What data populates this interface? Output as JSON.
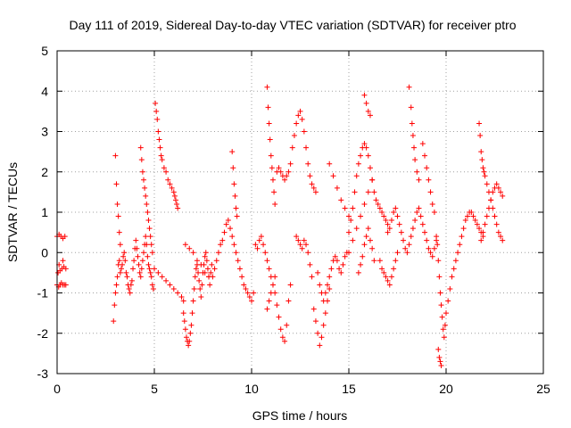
{
  "chart_data": {
    "type": "scatter",
    "title": "Day 111 of 2019, Sidereal Day-to-day VTEC variation (SDTVAR) for receiver ptro",
    "xlabel": "GPS time / hours",
    "ylabel": "SDTVAR / TECUs",
    "xlim": [
      0,
      25
    ],
    "ylim": [
      -3,
      5
    ],
    "xticks": [
      "0",
      "5",
      "10",
      "15",
      "20",
      "25"
    ],
    "yticks": [
      "-3",
      "-2",
      "-1",
      "0",
      "1",
      "2",
      "3",
      "4",
      "5"
    ],
    "grid": true,
    "marker": "+",
    "color": "#ff0000",
    "series": [
      {
        "name": "SDTVAR",
        "x": [
          0.0,
          0.08,
          0.15,
          0.22,
          0.3,
          0.38,
          0.45,
          0.0,
          0.1,
          0.2,
          0.3,
          0.4,
          0.05,
          0.15,
          0.25,
          0.35,
          0.45,
          0.1,
          0.3,
          2.9,
          2.95,
          3.0,
          3.05,
          3.1,
          3.15,
          3.2,
          3.25,
          3.3,
          3.35,
          3.4,
          3.45,
          3.5,
          3.55,
          3.6,
          3.65,
          3.7,
          3.75,
          3.8,
          3.85,
          3.9,
          3.95,
          4.0,
          4.05,
          4.1,
          4.15,
          4.2,
          4.25,
          4.3,
          4.35,
          4.4,
          4.45,
          4.5,
          4.55,
          4.6,
          4.65,
          4.7,
          4.75,
          4.8,
          4.85,
          4.9,
          4.95,
          3.0,
          3.05,
          3.1,
          3.15,
          3.2,
          3.25,
          4.3,
          4.35,
          4.4,
          4.45,
          4.5,
          4.55,
          4.6,
          4.65,
          4.7,
          4.75,
          4.8,
          4.85,
          4.9,
          5.05,
          5.1,
          5.15,
          5.2,
          5.25,
          5.3,
          5.35,
          5.4,
          5.5,
          5.6,
          5.7,
          5.8,
          5.9,
          6.0,
          6.05,
          6.1,
          6.15,
          6.2,
          5.0,
          5.2,
          5.4,
          5.6,
          5.8,
          6.0,
          6.2,
          6.4,
          6.5,
          6.5,
          6.55,
          6.6,
          6.65,
          6.7,
          6.75,
          6.8,
          6.85,
          6.9,
          6.95,
          7.0,
          7.05,
          7.1,
          7.15,
          7.2,
          7.25,
          7.3,
          7.35,
          7.4,
          7.45,
          7.5,
          7.55,
          7.6,
          7.65,
          7.7,
          7.75,
          7.8,
          7.85,
          7.9,
          7.95,
          6.6,
          6.8,
          7.0,
          7.2,
          7.4,
          7.6,
          7.8,
          8.0,
          8.1,
          8.2,
          8.3,
          8.4,
          8.5,
          8.6,
          8.7,
          8.8,
          8.9,
          9.0,
          9.1,
          9.2,
          9.3,
          9.4,
          9.5,
          9.6,
          9.7,
          9.8,
          9.9,
          10.0,
          10.1,
          9.0,
          9.05,
          9.1,
          9.15,
          9.2,
          9.25,
          10.2,
          10.3,
          10.4,
          10.5,
          10.6,
          10.7,
          10.8,
          10.9,
          11.0,
          11.1,
          11.2,
          11.3,
          11.4,
          11.5,
          11.6,
          11.7,
          11.8,
          11.9,
          12.0,
          10.8,
          10.85,
          10.9,
          10.95,
          11.0,
          11.05,
          11.1,
          11.15,
          11.2,
          10.8,
          10.9,
          11.0,
          11.1,
          11.2,
          11.3,
          11.4,
          11.5,
          11.6,
          11.7,
          11.8,
          11.9,
          12.0,
          12.1,
          12.2,
          12.3,
          12.4,
          12.5,
          12.6,
          12.7,
          12.8,
          12.9,
          13.0,
          13.1,
          13.2,
          13.3,
          12.3,
          12.4,
          12.5,
          12.6,
          12.7,
          12.8,
          12.9,
          13.0,
          13.1,
          13.4,
          13.5,
          13.6,
          13.7,
          13.8,
          13.9,
          14.0,
          14.1,
          14.2,
          14.3,
          14.4,
          14.5,
          14.6,
          14.7,
          14.8,
          14.9,
          13.2,
          13.3,
          13.4,
          13.5,
          13.6,
          13.7,
          13.8,
          13.9,
          14.0,
          14.0,
          14.2,
          14.4,
          14.6,
          14.8,
          15.0,
          15.0,
          15.1,
          15.2,
          15.3,
          15.4,
          15.5,
          15.6,
          15.7,
          15.8,
          15.9,
          16.0,
          16.1,
          16.2,
          16.3,
          16.4,
          16.5,
          16.6,
          16.7,
          16.8,
          16.9,
          17.0,
          15.5,
          15.6,
          15.7,
          15.8,
          15.9,
          16.0,
          16.1,
          16.2,
          16.3,
          15.8,
          15.9,
          16.0,
          16.1,
          15.0,
          15.2,
          15.4,
          15.6,
          15.8,
          16.0,
          16.2,
          17.0,
          17.1,
          17.2,
          17.3,
          17.4,
          17.5,
          17.6,
          17.7,
          17.8,
          17.9,
          18.0,
          18.1,
          18.2,
          18.3,
          18.4,
          18.5,
          18.6,
          18.7,
          18.8,
          18.9,
          19.0,
          19.1,
          19.2,
          19.3,
          19.4,
          19.5,
          16.6,
          16.7,
          16.8,
          16.9,
          17.0,
          17.1,
          17.2,
          17.3,
          17.4,
          17.5,
          18.1,
          18.2,
          18.25,
          18.3,
          18.35,
          18.4,
          18.5,
          18.6,
          18.8,
          18.9,
          19.0,
          19.1,
          19.2,
          19.3,
          19.4,
          19.5,
          19.55,
          19.6,
          19.65,
          19.7,
          19.75,
          19.8,
          19.85,
          19.9,
          19.95,
          20.0,
          20.1,
          20.2,
          20.3,
          20.4,
          20.5,
          20.6,
          20.7,
          20.8,
          20.9,
          21.0,
          21.1,
          21.2,
          21.3,
          21.4,
          21.5,
          21.6,
          21.7,
          21.8,
          21.9,
          19.6,
          19.65,
          19.7,
          19.75,
          21.7,
          21.75,
          21.8,
          21.85,
          21.9,
          21.95,
          22.0,
          22.1,
          22.2,
          22.3,
          22.4,
          22.5,
          22.6,
          22.7,
          22.8,
          22.9,
          21.8,
          21.9,
          22.0,
          22.1,
          22.2,
          22.3,
          22.4,
          22.5,
          22.6,
          22.7,
          22.8,
          22.9
        ],
        "y": [
          -0.8,
          -0.85,
          -0.8,
          -0.75,
          -0.8,
          -0.8,
          -0.8,
          0.4,
          0.45,
          0.4,
          0.35,
          0.4,
          -0.5,
          -0.45,
          -0.4,
          -0.35,
          -0.4,
          -0.3,
          -0.2,
          -1.7,
          -1.3,
          -1.0,
          -0.8,
          -0.6,
          -0.3,
          -0.2,
          -0.5,
          -0.4,
          -0.3,
          -0.1,
          0.0,
          -0.2,
          -0.5,
          -0.6,
          -0.8,
          -0.9,
          -1.0,
          -0.8,
          -0.7,
          -0.4,
          -0.2,
          0.1,
          0.3,
          0.1,
          -0.1,
          -0.3,
          -0.5,
          -0.6,
          -0.4,
          -0.2,
          0.0,
          0.2,
          0.4,
          0.2,
          -0.1,
          -0.3,
          -0.4,
          -0.5,
          -0.6,
          -0.8,
          -0.9,
          2.4,
          1.7,
          1.2,
          0.9,
          0.5,
          0.2,
          2.6,
          2.3,
          2.0,
          1.8,
          1.6,
          1.4,
          1.2,
          1.0,
          0.8,
          0.6,
          0.4,
          0.2,
          0.0,
          3.7,
          3.5,
          3.3,
          3.0,
          2.8,
          2.6,
          2.4,
          2.3,
          2.1,
          2.0,
          1.8,
          1.7,
          1.6,
          1.5,
          1.4,
          1.3,
          1.2,
          1.1,
          -0.4,
          -0.5,
          -0.6,
          -0.7,
          -0.8,
          -0.9,
          -1.0,
          -1.1,
          -1.2,
          -1.5,
          -1.7,
          -1.9,
          -2.1,
          -2.2,
          -2.3,
          -2.2,
          -2.0,
          -1.8,
          -1.5,
          -1.2,
          -0.9,
          -0.6,
          -0.4,
          -0.3,
          -0.5,
          -0.7,
          -0.9,
          -1.1,
          -0.8,
          -0.5,
          -0.3,
          -0.1,
          0.0,
          -0.2,
          -0.4,
          -0.6,
          -0.8,
          -0.5,
          -0.3,
          0.2,
          0.1,
          0.0,
          -0.2,
          -0.3,
          -0.5,
          -0.6,
          -0.6,
          -0.4,
          -0.2,
          0.0,
          0.2,
          0.3,
          0.5,
          0.7,
          0.8,
          0.6,
          0.4,
          0.2,
          0.0,
          -0.2,
          -0.4,
          -0.6,
          -0.8,
          -0.9,
          -1.0,
          -1.1,
          -1.2,
          -1.0,
          2.5,
          2.1,
          1.7,
          1.4,
          1.1,
          0.9,
          0.2,
          0.1,
          0.3,
          0.4,
          0.2,
          0.0,
          -0.2,
          -0.4,
          -0.6,
          -0.8,
          -1.0,
          -1.3,
          -1.6,
          -1.9,
          -2.1,
          -2.2,
          -1.8,
          -1.2,
          -0.8,
          4.1,
          3.6,
          3.2,
          2.8,
          2.4,
          2.1,
          1.8,
          1.5,
          1.2,
          -1.4,
          -1.2,
          -1.0,
          -0.8,
          -0.6,
          2.0,
          2.1,
          2.0,
          1.9,
          1.8,
          1.9,
          2.0,
          2.2,
          2.6,
          2.9,
          3.2,
          3.4,
          3.5,
          3.3,
          3.0,
          2.6,
          2.2,
          1.9,
          1.7,
          1.6,
          1.5,
          0.4,
          0.3,
          0.2,
          0.1,
          0.3,
          0.2,
          0.0,
          -0.3,
          -0.6,
          -0.5,
          -0.8,
          -1.0,
          -1.2,
          -1.0,
          -0.8,
          -0.6,
          -0.4,
          -0.2,
          -0.1,
          -0.2,
          -0.4,
          -0.5,
          -0.3,
          -0.1,
          0.0,
          -1.4,
          -1.7,
          -2.0,
          -2.3,
          -2.1,
          -1.8,
          -1.5,
          -1.2,
          -0.9,
          2.2,
          1.9,
          1.6,
          1.3,
          1.1,
          0.9,
          0.5,
          0.8,
          1.1,
          1.5,
          1.9,
          2.2,
          2.4,
          2.6,
          2.7,
          2.6,
          2.4,
          2.1,
          1.8,
          1.5,
          1.3,
          1.2,
          1.1,
          1.0,
          0.9,
          0.8,
          0.7,
          -0.5,
          -0.3,
          -0.1,
          0.2,
          0.4,
          0.6,
          0.3,
          0.1,
          -0.2,
          3.9,
          3.7,
          3.5,
          3.4,
          0.0,
          0.3,
          0.6,
          0.9,
          1.2,
          1.5,
          1.8,
          0.5,
          0.6,
          0.8,
          1.0,
          1.1,
          0.9,
          0.7,
          0.5,
          0.3,
          0.1,
          0.0,
          0.2,
          0.4,
          0.6,
          0.8,
          1.0,
          1.1,
          0.9,
          0.7,
          0.5,
          0.3,
          0.1,
          0.0,
          -0.1,
          0.1,
          0.3,
          -0.2,
          -0.4,
          -0.5,
          -0.6,
          -0.7,
          -0.8,
          -0.6,
          -0.4,
          -0.2,
          0.0,
          4.1,
          3.6,
          3.2,
          2.9,
          2.6,
          2.3,
          2.0,
          1.8,
          2.7,
          2.4,
          2.1,
          1.8,
          1.5,
          1.2,
          1.0,
          0.4,
          0.2,
          -0.2,
          -0.6,
          -1.0,
          -1.3,
          -1.6,
          -1.9,
          -2.1,
          -1.8,
          -1.5,
          -1.2,
          -0.9,
          -0.6,
          -0.4,
          -0.2,
          0.0,
          0.2,
          0.4,
          0.6,
          0.8,
          0.9,
          1.0,
          1.0,
          0.9,
          0.8,
          0.7,
          0.6,
          0.5,
          0.4,
          -2.4,
          -2.6,
          -2.7,
          -2.8,
          3.2,
          2.9,
          2.5,
          2.3,
          2.1,
          2.0,
          1.9,
          1.7,
          1.5,
          1.3,
          1.1,
          0.9,
          0.7,
          0.5,
          0.4,
          0.3,
          0.3,
          0.5,
          0.7,
          0.9,
          1.1,
          1.3,
          1.5,
          1.6,
          1.7,
          1.6,
          1.5,
          1.4
        ]
      }
    ]
  }
}
